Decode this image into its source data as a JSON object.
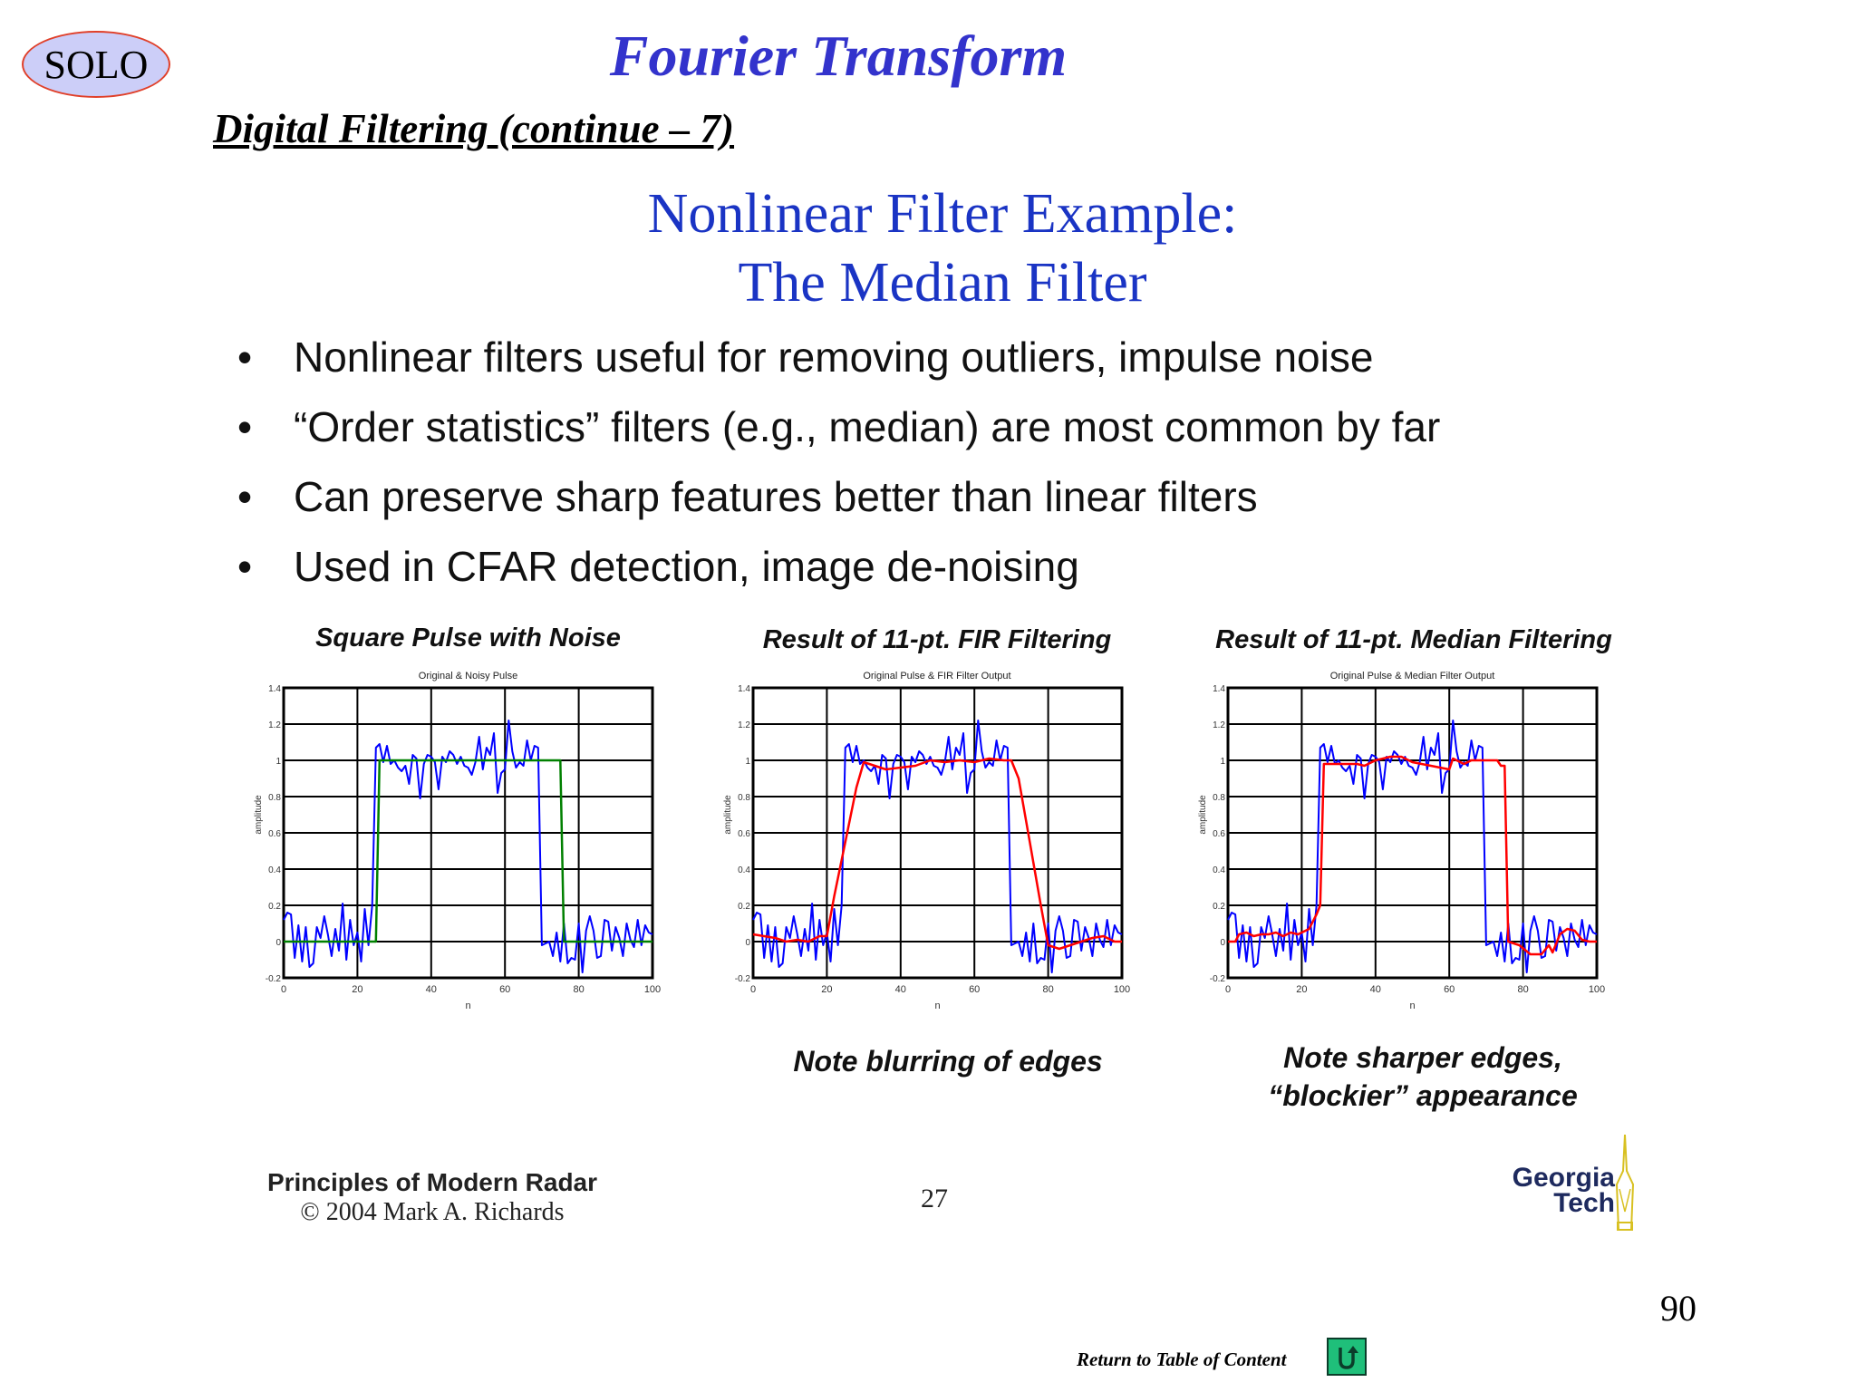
{
  "header": {
    "logo_text": "SOLO",
    "title": "Fourier Transform",
    "subtitle": "Digital Filtering (continue – 7)"
  },
  "slide": {
    "title_line1": "Nonlinear Filter Example:",
    "title_line2": "The Median Filter",
    "bullets": [
      "Nonlinear filters useful for removing outliers, impulse noise",
      "“Order statistics” filters (e.g., median) are most common by far",
      "Can preserve sharp features better than linear filters",
      "Used in CFAR detection, image de-noising"
    ],
    "notes": {
      "fir": "Note blurring of edges",
      "median_line1": "Note sharper edges,",
      "median_line2": "“blockier” appearance"
    },
    "footer": {
      "book": "Principles of Modern Radar",
      "copyright": "© 2004 Mark A. Richards",
      "slide_number": "27",
      "logo_line1": "Georgia",
      "logo_line2": "Tech"
    }
  },
  "page_number": "90",
  "toc_link": "Return to Table of Content",
  "colors": {
    "noisy": "#0000ff",
    "original": "#008000",
    "filtered": "#ff0000",
    "title_blue": "#3333cc",
    "slide_title_blue": "#1a34c4"
  },
  "chart_data": [
    {
      "type": "line",
      "heading": "Square Pulse with Noise",
      "title": "Original & Noisy Pulse",
      "xlabel": "n",
      "ylabel": "amplitude",
      "xlim": [
        0,
        100
      ],
      "ylim": [
        -0.2,
        1.4
      ],
      "xticks": [
        "0",
        "20",
        "40",
        "60",
        "80",
        "100"
      ],
      "yticks": [
        "-0.2",
        "0",
        "0.2",
        "0.4",
        "0.6",
        "0.8",
        "1",
        "1.2",
        "1.4"
      ],
      "grid": true,
      "series": [
        {
          "name": "Noisy pulse",
          "color": "#0000ff",
          "x": [
            0,
            1,
            2,
            3,
            4,
            5,
            6,
            7,
            8,
            9,
            10,
            11,
            12,
            13,
            14,
            15,
            16,
            17,
            18,
            19,
            20,
            21,
            22,
            23,
            24,
            25,
            26,
            27,
            28,
            29,
            30,
            31,
            32,
            33,
            34,
            35,
            36,
            37,
            38,
            39,
            40,
            41,
            42,
            43,
            44,
            45,
            46,
            47,
            48,
            49,
            50,
            51,
            52,
            53,
            54,
            55,
            56,
            57,
            58,
            59,
            60,
            61,
            62,
            63,
            64,
            65,
            66,
            67,
            68,
            69,
            70,
            71,
            72,
            73,
            74,
            75,
            76,
            77,
            78,
            79,
            80,
            81,
            82,
            83,
            84,
            85,
            86,
            87,
            88,
            89,
            90,
            91,
            92,
            93,
            94,
            95,
            96,
            97,
            98,
            99,
            100
          ],
          "y": [
            0.12,
            0.16,
            0.15,
            -0.09,
            0.09,
            -0.11,
            0.08,
            -0.14,
            -0.12,
            0.08,
            0.02,
            0.14,
            0.04,
            -0.08,
            0.07,
            -0.05,
            0.21,
            -0.1,
            0.12,
            -0.02,
            0.05,
            -0.11,
            0.18,
            -0.02,
            0.2,
            1.07,
            1.09,
            0.99,
            1.08,
            0.98,
            1.0,
            0.96,
            0.94,
            0.97,
            0.87,
            1.03,
            1.01,
            0.79,
            0.98,
            1.03,
            1.02,
            0.99,
            0.84,
            1.02,
            0.99,
            1.05,
            1.03,
            0.98,
            1.02,
            0.97,
            0.96,
            0.92,
            0.99,
            1.13,
            0.95,
            1.07,
            1.03,
            1.15,
            0.82,
            0.93,
            0.95,
            1.22,
            1.05,
            0.96,
            0.99,
            0.97,
            1.11,
            1.0,
            1.08,
            1.07,
            -0.02,
            -0.01,
            0.0,
            -0.08,
            0.05,
            -0.11,
            0.1,
            -0.12,
            -0.09,
            -0.1,
            0.1,
            -0.17,
            0.06,
            0.14,
            0.06,
            -0.09,
            -0.08,
            0.12,
            0.11,
            -0.05,
            0.08,
            0.02,
            -0.08,
            0.1,
            0.01,
            -0.03,
            0.12,
            -0.02,
            0.09,
            0.05,
            0.04
          ]
        },
        {
          "name": "Original pulse",
          "color": "#008000",
          "x": [
            0,
            25,
            26,
            75,
            76,
            100
          ],
          "y": [
            0,
            0,
            1,
            1,
            0,
            0
          ]
        }
      ]
    },
    {
      "type": "line",
      "heading": "Result of 11-pt. FIR Filtering",
      "title": "Original Pulse & FIR Filter Output",
      "xlabel": "n",
      "ylabel": "amplitude",
      "xlim": [
        0,
        100
      ],
      "ylim": [
        -0.2,
        1.4
      ],
      "xticks": [
        "0",
        "20",
        "40",
        "60",
        "80",
        "100"
      ],
      "yticks": [
        "-0.2",
        "0",
        "0.2",
        "0.4",
        "0.6",
        "0.8",
        "1",
        "1.2",
        "1.4"
      ],
      "grid": true,
      "series": [
        {
          "name": "Noisy pulse",
          "color": "#0000ff",
          "ref": "same as chart 1 noisy pulse"
        },
        {
          "name": "FIR filter output",
          "color": "#ff0000",
          "x": [
            0,
            3,
            6,
            9,
            12,
            15,
            18,
            20,
            22,
            25,
            28,
            30,
            33,
            36,
            40,
            44,
            48,
            52,
            56,
            60,
            64,
            68,
            70,
            72,
            75,
            78,
            80,
            83,
            86,
            89,
            92,
            95,
            98,
            100
          ],
          "y": [
            0.04,
            0.03,
            0.02,
            0.0,
            0.01,
            0.0,
            0.03,
            0.03,
            0.25,
            0.55,
            0.85,
            0.99,
            0.97,
            0.95,
            0.96,
            0.97,
            1.0,
            0.99,
            1.0,
            0.99,
            1.01,
            1.0,
            1.0,
            0.9,
            0.55,
            0.2,
            -0.02,
            -0.04,
            -0.02,
            0.0,
            0.02,
            0.03,
            0.0,
            0.0
          ]
        }
      ]
    },
    {
      "type": "line",
      "heading": "Result of 11-pt. Median Filtering",
      "title": "Original Pulse & Median Filter Output",
      "xlabel": "n",
      "ylabel": "amplitude",
      "xlim": [
        0,
        100
      ],
      "ylim": [
        -0.2,
        1.4
      ],
      "xticks": [
        "0",
        "20",
        "40",
        "60",
        "80",
        "100"
      ],
      "yticks": [
        "-0.2",
        "0",
        "0.2",
        "0.4",
        "0.6",
        "0.8",
        "1",
        "1.2",
        "1.4"
      ],
      "grid": true,
      "series": [
        {
          "name": "Noisy pulse",
          "color": "#0000ff",
          "ref": "same as chart 1 noisy pulse"
        },
        {
          "name": "Median filter output",
          "color": "#ff0000",
          "x": [
            0,
            2,
            3,
            5,
            7,
            9,
            11,
            13,
            15,
            17,
            19,
            21,
            22,
            24,
            25,
            26,
            30,
            35,
            37,
            40,
            44,
            47,
            50,
            55,
            60,
            61,
            62,
            64,
            66,
            68,
            70,
            73,
            74,
            75,
            76,
            79,
            82,
            85,
            87,
            88,
            90,
            92,
            94,
            96,
            98,
            100
          ],
          "y": [
            0,
            0,
            0.04,
            0.05,
            0.03,
            0.04,
            0.04,
            0.05,
            0.03,
            0.05,
            0.04,
            0.06,
            0.07,
            0.15,
            0.2,
            0.98,
            0.98,
            0.98,
            0.97,
            1.0,
            1.02,
            1.02,
            0.99,
            0.97,
            0.95,
            1.01,
            1.0,
            0.98,
            1.0,
            1.0,
            1.0,
            1.0,
            0.97,
            0.97,
            0.0,
            -0.02,
            -0.07,
            -0.07,
            -0.02,
            -0.06,
            0.04,
            0.07,
            0.06,
            0.01,
            0.0,
            0.0
          ]
        }
      ]
    }
  ]
}
